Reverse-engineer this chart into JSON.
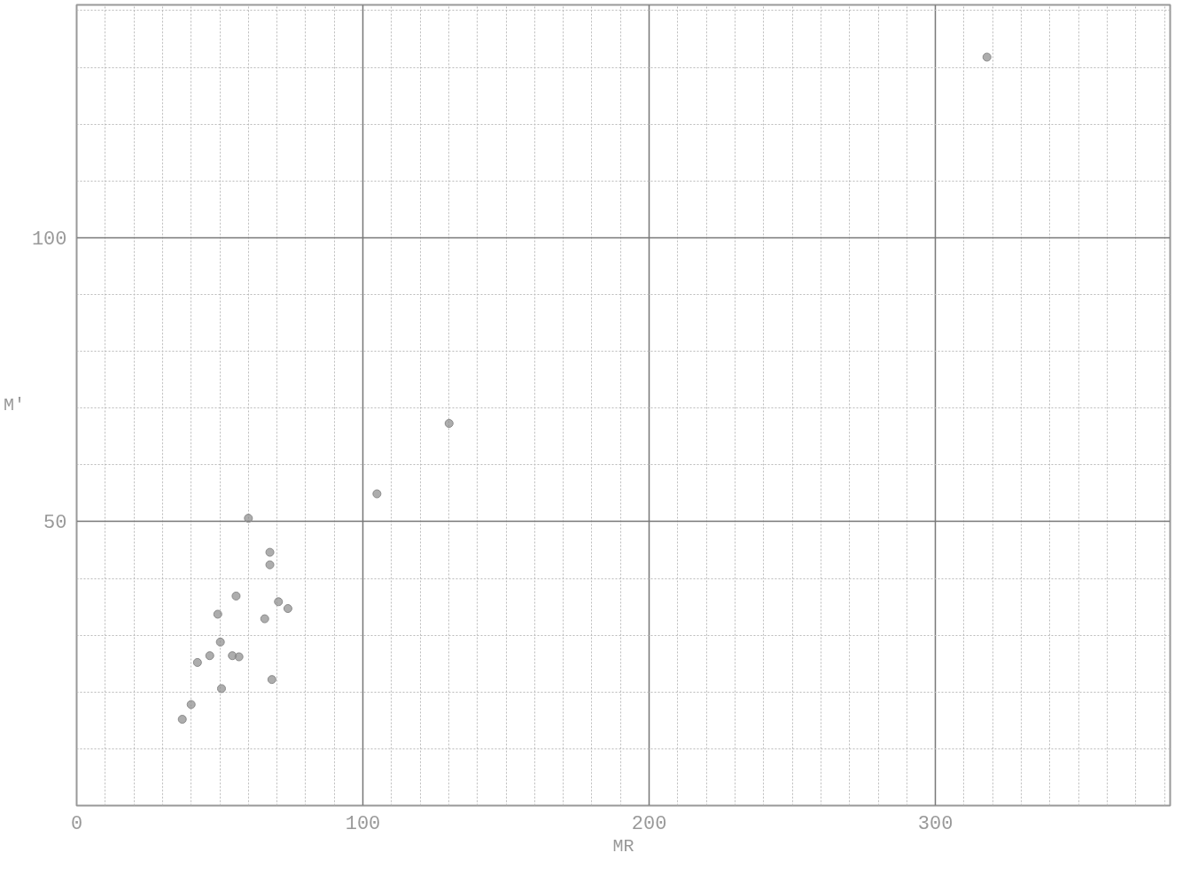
{
  "chart_data": {
    "type": "scatter",
    "xlabel": "MR",
    "ylabel": "M′",
    "x": [
      60.0,
      67.5,
      67.5,
      55.7,
      70.5,
      73.8,
      49.3,
      65.7,
      50.2,
      46.5,
      54.4,
      56.7,
      42.2,
      68.2,
      50.6,
      40.0,
      36.9,
      130.1,
      104.9,
      318
    ],
    "values": [
      50.6,
      44.6,
      42.4,
      36.9,
      35.9,
      34.7,
      33.7,
      32.9,
      28.8,
      26.4,
      26.4,
      26.2,
      25.2,
      22.2,
      20.6,
      17.8,
      15.2,
      67.3,
      54.9,
      131.8
    ],
    "color": "#8a8a8a",
    "marker": "circle",
    "xlim": [
      0,
      382
    ],
    "ylim": [
      0,
      141
    ],
    "xticks": [
      0,
      100,
      200,
      300
    ],
    "yticks": [
      50,
      100
    ],
    "grid": true
  }
}
